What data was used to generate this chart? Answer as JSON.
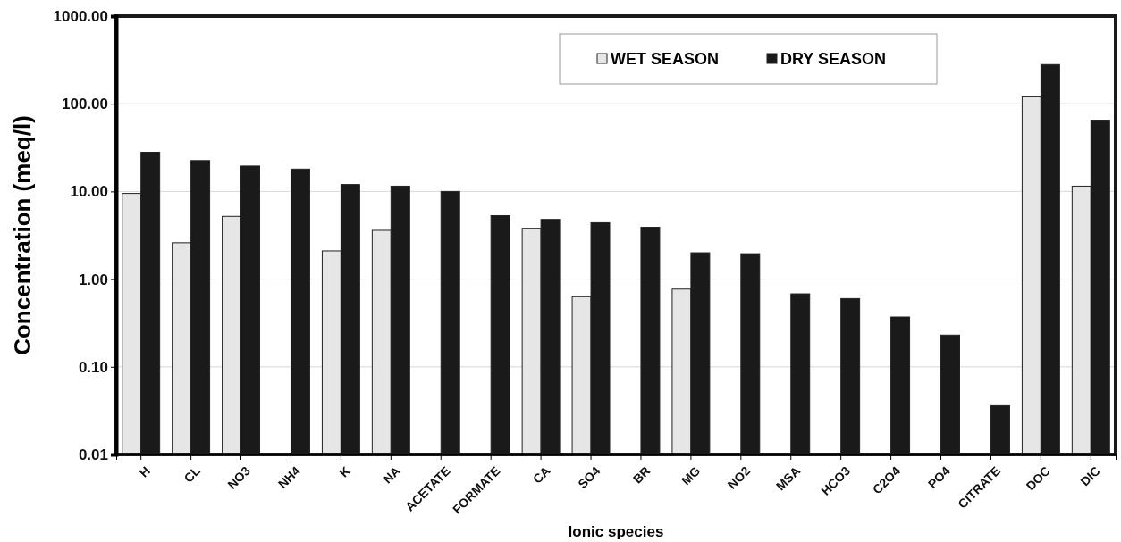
{
  "chart_data": {
    "type": "bar",
    "xlabel": "Ionic species",
    "ylabel": "Concentration (meq/l)",
    "categories": [
      "H",
      "CL",
      "NO3",
      "NH4",
      "K",
      "NA",
      "ACETATE",
      "FORMATE",
      "CA",
      "SO4",
      "BR",
      "MG",
      "NO2",
      "MSA",
      "HCO3",
      "C2O4",
      "PO4",
      "CITRATE",
      "DOC",
      "DIC"
    ],
    "series": [
      {
        "name": "WET SEASON",
        "color": "#e6e6e6",
        "values": [
          9.5,
          2.6,
          5.2,
          null,
          2.1,
          3.6,
          null,
          null,
          3.8,
          0.63,
          null,
          0.77,
          null,
          null,
          null,
          null,
          null,
          null,
          120,
          11.5
        ]
      },
      {
        "name": "DRY SEASON",
        "color": "#1a1a1a",
        "values": [
          28,
          22.5,
          19.5,
          18,
          12,
          11.5,
          10,
          5.3,
          4.8,
          4.4,
          3.9,
          2.0,
          1.95,
          0.68,
          0.6,
          0.37,
          0.23,
          0.036,
          280,
          65
        ]
      }
    ],
    "log": true,
    "ylim": [
      0.01,
      1000
    ],
    "yticks": [
      {
        "value": 0.01,
        "label": "0.01"
      },
      {
        "value": 0.1,
        "label": "0.10"
      },
      {
        "value": 1,
        "label": "1.00"
      },
      {
        "value": 10,
        "label": "10.00"
      },
      {
        "value": 100,
        "label": "100.00"
      },
      {
        "value": 1000,
        "label": "1000.00"
      }
    ],
    "grid": "y",
    "legend": "top right"
  }
}
